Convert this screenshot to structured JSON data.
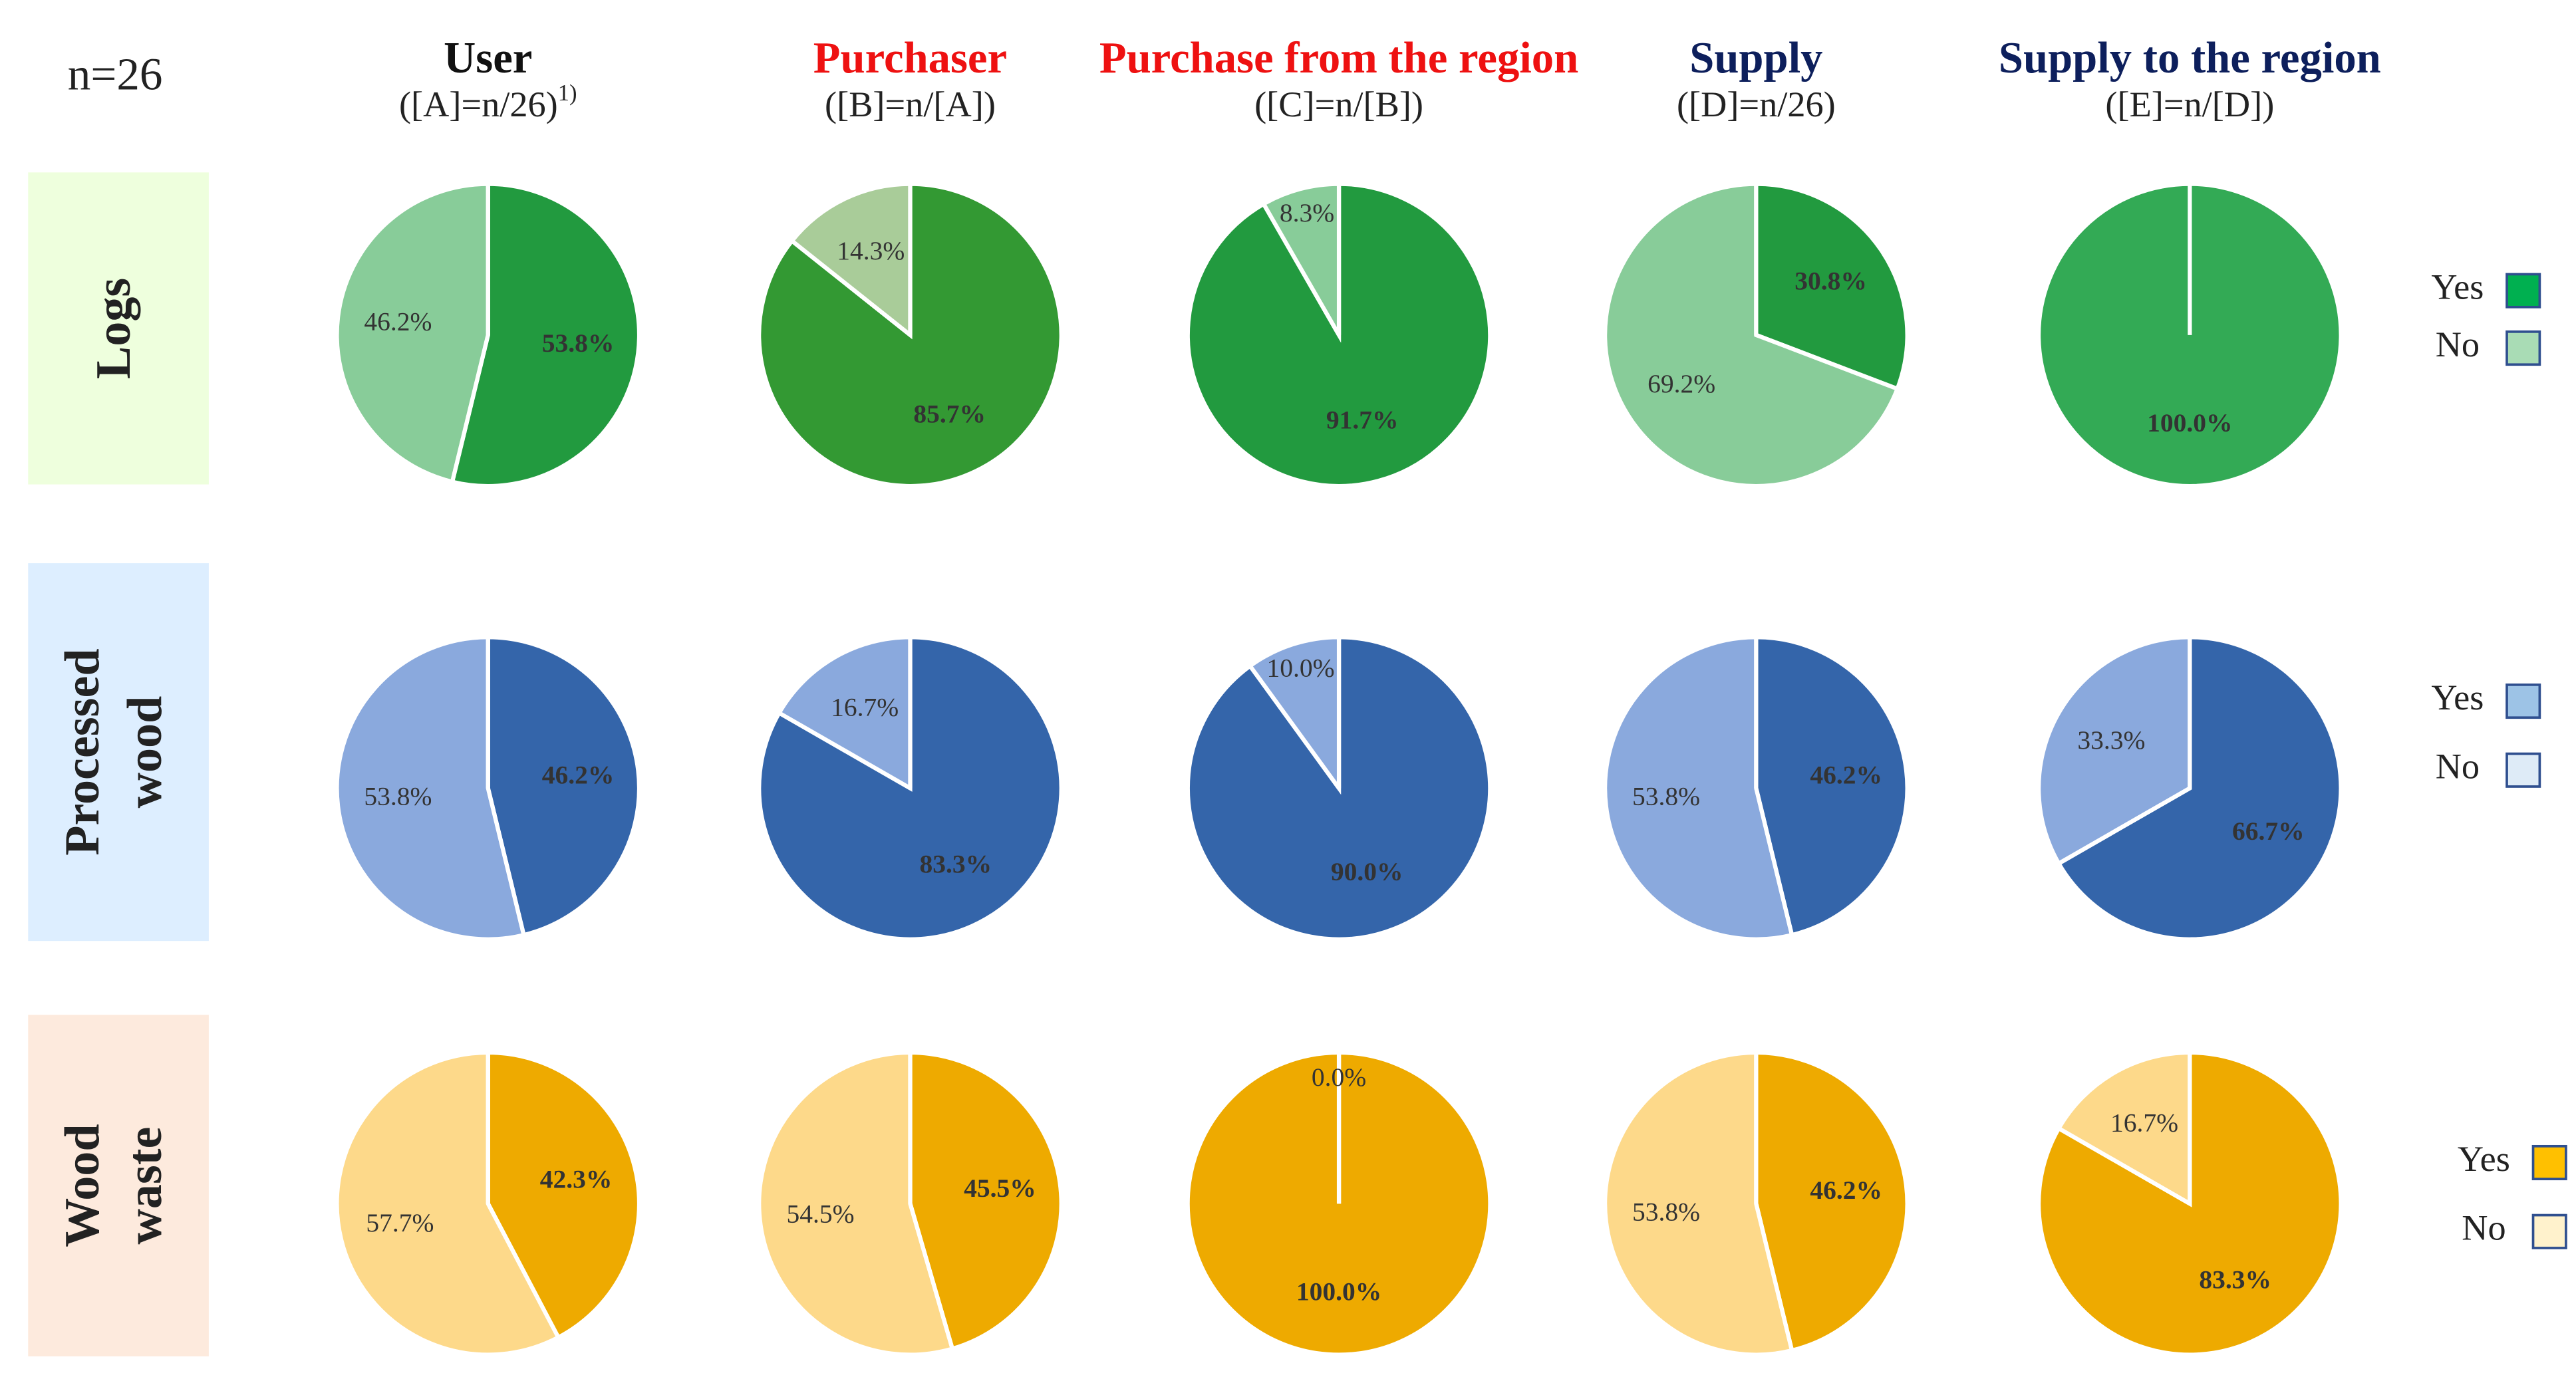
{
  "n_label": "n=26",
  "columns": [
    {
      "title": "User",
      "subtitle": "([A]=n/26)",
      "note": "1)",
      "color": "#111111"
    },
    {
      "title": "Purchaser",
      "subtitle": "([B]=n/[A])",
      "color": "#ee1111"
    },
    {
      "title": "Purchase from the region",
      "subtitle": "([C]=n/[B])",
      "color": "#ee1111"
    },
    {
      "title": "Supply",
      "subtitle": "([D]=n/26)",
      "color": "#0d1f5c"
    },
    {
      "title": "Supply to the region",
      "subtitle": "([E]=n/[D])",
      "color": "#0d1f5c"
    }
  ],
  "rows": [
    {
      "label": [
        "Logs"
      ],
      "background": "#eeffdd",
      "legend": [
        {
          "name": "Yes",
          "color": "#00b050"
        },
        {
          "name": "No",
          "color": "#a9dcb5"
        }
      ]
    },
    {
      "label": [
        "Processed",
        "wood"
      ],
      "background": "#ddeeff",
      "legend": [
        {
          "name": "Yes",
          "color": "#9dc3e6"
        },
        {
          "name": "No",
          "color": "#deebf7"
        }
      ]
    },
    {
      "label": [
        "Wood",
        "waste"
      ],
      "background": "#fdeadd",
      "legend": [
        {
          "name": "Yes",
          "color": "#ffc000"
        },
        {
          "name": "No",
          "color": "#fff2cc"
        }
      ]
    }
  ],
  "chart_data": [
    {
      "type": "pie",
      "values": [
        53.8,
        46.2
      ],
      "value_labels": [
        "53.8%",
        "46.2%"
      ],
      "colors": [
        "#229a3f",
        "#88cc99"
      ]
    },
    {
      "type": "pie",
      "values": [
        85.7,
        14.3
      ],
      "value_labels": [
        "85.7%",
        "14.3%"
      ],
      "colors": [
        "#339933",
        "#a9cc99"
      ]
    },
    {
      "type": "pie",
      "values": [
        91.7,
        8.3
      ],
      "value_labels": [
        "91.7%",
        "8.3%"
      ],
      "colors": [
        "#229a3f",
        "#88cc99"
      ]
    },
    {
      "type": "pie",
      "values": [
        30.8,
        69.2
      ],
      "value_labels": [
        "30.8%",
        "69.2%"
      ],
      "colors": [
        "#229a3f",
        "#88cc99"
      ]
    },
    {
      "type": "pie",
      "values": [
        100
      ],
      "value_labels": [
        "100.0%"
      ],
      "colors": [
        "#33aa55"
      ]
    },
    {
      "type": "pie",
      "values": [
        46.2,
        53.8
      ],
      "value_labels": [
        "46.2%",
        "53.8%"
      ],
      "colors": [
        "#3465aa",
        "#8aa9dd"
      ]
    },
    {
      "type": "pie",
      "values": [
        83.3,
        16.7
      ],
      "value_labels": [
        "83.3%",
        "16.7%"
      ],
      "colors": [
        "#3465aa",
        "#8aa9dd"
      ]
    },
    {
      "type": "pie",
      "values": [
        90.0,
        10.0
      ],
      "value_labels": [
        "90.0%",
        "10.0%"
      ],
      "colors": [
        "#3465aa",
        "#8aa9dd"
      ]
    },
    {
      "type": "pie",
      "values": [
        46.2,
        53.8
      ],
      "value_labels": [
        "46.2%",
        "53.8%"
      ],
      "colors": [
        "#3465aa",
        "#8aa9dd"
      ]
    },
    {
      "type": "pie",
      "values": [
        66.7,
        33.3
      ],
      "value_labels": [
        "66.7%",
        "33.3%"
      ],
      "colors": [
        "#3465aa",
        "#8aa9dd"
      ]
    },
    {
      "type": "pie",
      "values": [
        42.3,
        57.7
      ],
      "value_labels": [
        "42.3%",
        "57.7%"
      ],
      "colors": [
        "#eeaa00",
        "#fdd98a"
      ]
    },
    {
      "type": "pie",
      "values": [
        45.5,
        54.5
      ],
      "value_labels": [
        "45.5%",
        "54.5%"
      ],
      "colors": [
        "#eeaa00",
        "#fdd98a"
      ]
    },
    {
      "type": "pie",
      "values": [
        100.0,
        0.0
      ],
      "value_labels": [
        "100.0%",
        "0.0%"
      ],
      "colors": [
        "#eeaa00",
        "#fdd98a"
      ]
    },
    {
      "type": "pie",
      "values": [
        46.2,
        53.8
      ],
      "value_labels": [
        "46.2%",
        "53.8%"
      ],
      "colors": [
        "#eeaa00",
        "#fdd98a"
      ]
    },
    {
      "type": "pie",
      "values": [
        83.3,
        16.7
      ],
      "value_labels": [
        "83.3%",
        "16.7%"
      ],
      "colors": [
        "#eeaa00",
        "#fdd98a"
      ]
    }
  ]
}
